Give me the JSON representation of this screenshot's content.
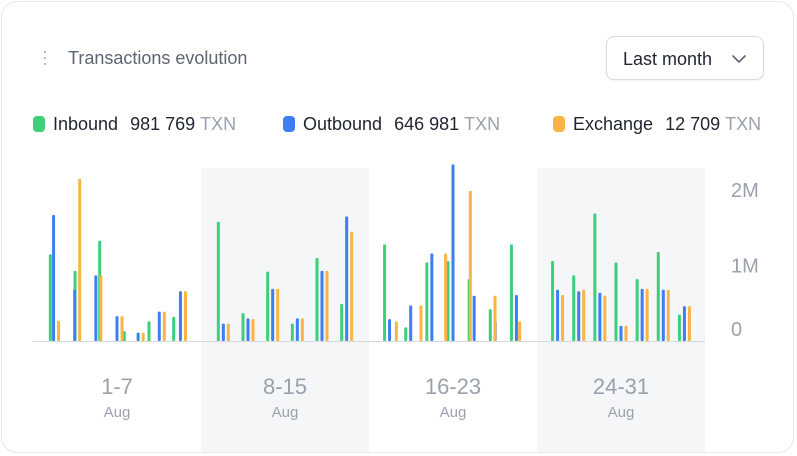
{
  "header": {
    "title": "Transactions evolution",
    "period": "Last month"
  },
  "legend": [
    {
      "name": "Inbound",
      "value": "981 769",
      "unit": "TXN",
      "color": "#3ecf7a"
    },
    {
      "name": "Outbound",
      "value": "646 981",
      "unit": "TXN",
      "color": "#3b7ff2"
    },
    {
      "name": "Exchange",
      "value": "12 709",
      "unit": "TXN",
      "color": "#f9b443"
    }
  ],
  "chart_data": {
    "type": "bar",
    "title": "Transactions evolution",
    "ylim": [
      0,
      2200000
    ],
    "yticks": [
      {
        "value": 0,
        "label": "0"
      },
      {
        "value": 1000000,
        "label": "1M"
      },
      {
        "value": 2000000,
        "label": "2M"
      }
    ],
    "groups": [
      {
        "range": "1-7",
        "month": "Aug",
        "shaded": false
      },
      {
        "range": "8-15",
        "month": "Aug",
        "shaded": true
      },
      {
        "range": "16-23",
        "month": "Aug",
        "shaded": false
      },
      {
        "range": "24-31",
        "month": "Aug",
        "shaded": true
      }
    ],
    "series": [
      {
        "name": "Inbound",
        "color": "#3ecf7a",
        "values": [
          1150000,
          930000,
          1330000,
          130000,
          260000,
          320000,
          1580000,
          370000,
          920000,
          230000,
          1100000,
          490000,
          1280000,
          180000,
          1040000,
          1060000,
          820000,
          420000,
          1280000,
          1060000,
          870000,
          1690000,
          1040000,
          820000,
          1180000,
          350000
        ],
        "group_sizes": [
          6,
          6,
          7,
          7
        ]
      },
      {
        "name": "Outbound",
        "color": "#3b7ff2",
        "values": [
          1670000,
          680000,
          870000,
          330000,
          110000,
          390000,
          660000,
          230000,
          300000,
          690000,
          300000,
          930000,
          1650000,
          290000,
          470000,
          1160000,
          2340000,
          600000,
          260000,
          610000,
          680000,
          660000,
          640000,
          200000,
          690000,
          680000,
          460000
        ],
        "group_sizes": [
          7,
          6,
          7,
          7
        ]
      },
      {
        "name": "Exchange",
        "color": "#f9b443",
        "values": [
          270000,
          2150000,
          870000,
          330000,
          110000,
          390000,
          660000,
          230000,
          290000,
          690000,
          300000,
          930000,
          1450000,
          260000,
          470000,
          1160000,
          1990000,
          600000,
          260000,
          610000,
          680000,
          600000,
          200000,
          690000,
          680000,
          460000
        ],
        "group_sizes": [
          7,
          6,
          6,
          7
        ]
      }
    ],
    "xlabel": "",
    "ylabel": ""
  }
}
